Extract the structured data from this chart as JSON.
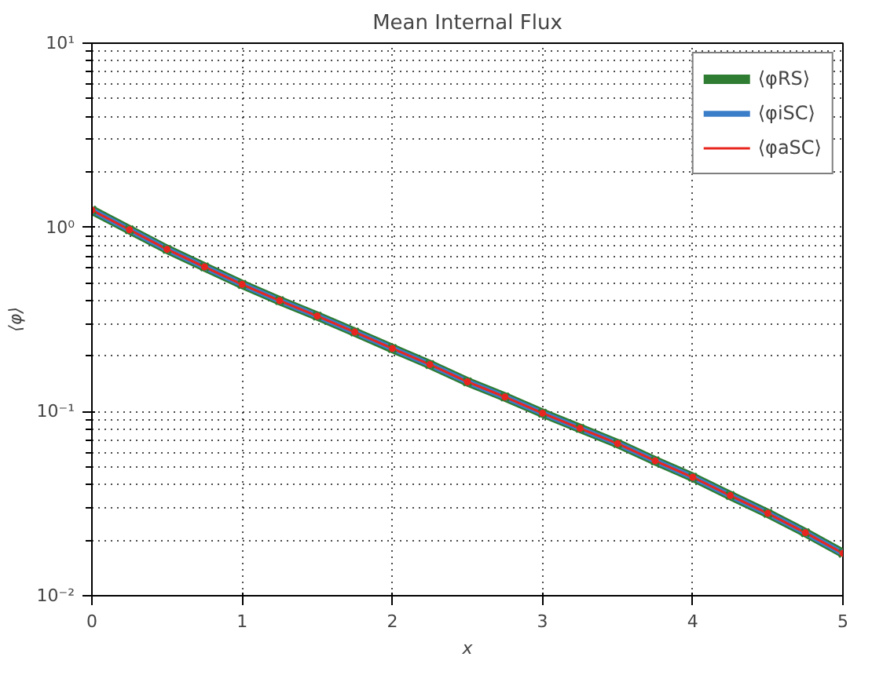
{
  "chart_data": {
    "type": "line",
    "title": "Mean Internal Flux",
    "xlabel": "x",
    "ylabel": "⟨φ⟩",
    "x": [
      0,
      0.25,
      0.5,
      0.75,
      1,
      1.25,
      1.5,
      1.75,
      2,
      2.25,
      2.5,
      2.75,
      3,
      3.25,
      3.5,
      3.75,
      4,
      4.25,
      4.5,
      4.75,
      5
    ],
    "series": [
      {
        "name": "⟨φRS⟩",
        "color": "#2e7d32",
        "marker": "cross",
        "values": [
          1.24,
          0.97,
          0.76,
          0.61,
          0.49,
          0.4,
          0.33,
          0.27,
          0.22,
          0.18,
          0.145,
          0.12,
          0.098,
          0.081,
          0.067,
          0.054,
          0.044,
          0.035,
          0.028,
          0.022,
          0.017
        ]
      },
      {
        "name": "⟨φiSC⟩",
        "color": "#3a7dc9",
        "marker": "none",
        "values": [
          1.24,
          0.97,
          0.76,
          0.61,
          0.49,
          0.4,
          0.33,
          0.27,
          0.22,
          0.18,
          0.145,
          0.12,
          0.098,
          0.081,
          0.067,
          0.054,
          0.044,
          0.035,
          0.028,
          0.022,
          0.017
        ]
      },
      {
        "name": "⟨φaSC⟩",
        "color": "#e8261f",
        "marker": "circle",
        "values": [
          1.24,
          0.97,
          0.76,
          0.61,
          0.49,
          0.4,
          0.33,
          0.27,
          0.22,
          0.18,
          0.145,
          0.12,
          0.098,
          0.081,
          0.067,
          0.054,
          0.044,
          0.035,
          0.028,
          0.022,
          0.017
        ]
      }
    ],
    "xlim": [
      0,
      5
    ],
    "xticks": [
      0,
      1,
      2,
      3,
      4,
      5
    ],
    "ylim": [
      0.01,
      10
    ],
    "yticks": [
      {
        "value": 0.01,
        "label": "10⁻²"
      },
      {
        "value": 0.1,
        "label": "10⁻¹"
      },
      {
        "value": 1,
        "label": "10⁰"
      },
      {
        "value": 10,
        "label": "10¹"
      }
    ],
    "log": true,
    "grid": true,
    "legend": "top right"
  }
}
